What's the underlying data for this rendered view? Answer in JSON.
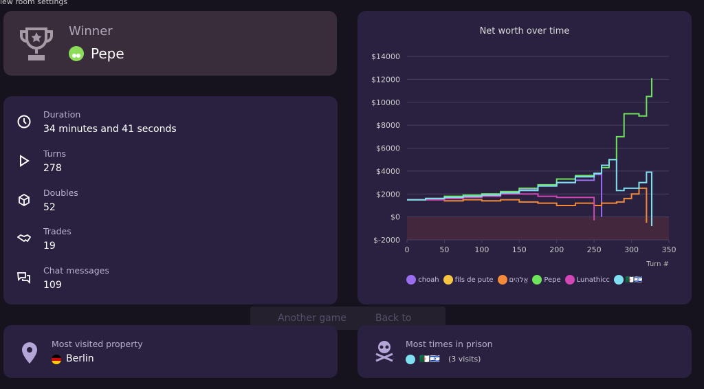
{
  "top_link": "iew room settings",
  "winner": {
    "heading": "Winner",
    "name": "Pepe"
  },
  "stats": [
    {
      "label": "Duration",
      "value": "34 minutes and 41 seconds"
    },
    {
      "label": "Turns",
      "value": "278"
    },
    {
      "label": "Doubles",
      "value": "52"
    },
    {
      "label": "Trades",
      "value": "19"
    },
    {
      "label": "Chat messages",
      "value": "109"
    }
  ],
  "buttons": [
    "Another game",
    "Back to lobby"
  ],
  "most_visited": {
    "label": "Most visited property",
    "value": "Berlin"
  },
  "prison": {
    "label": "Most times in prison",
    "players": "🇩🇿🇮🇱",
    "note": "(3 visits)"
  },
  "chart_data": {
    "type": "line",
    "step": true,
    "title": "Net worth over time",
    "xlabel": "Turn #",
    "x": [
      0,
      25,
      50,
      75,
      100,
      125,
      150,
      175,
      200,
      225,
      250,
      260,
      270,
      280,
      290,
      300,
      310,
      320,
      327
    ],
    "xlim": [
      0,
      350
    ],
    "xticks": [
      0,
      50,
      100,
      150,
      200,
      250,
      300,
      350
    ],
    "ylim": [
      -2000,
      14000
    ],
    "yticks": [
      {
        "value": -2000,
        "label": "$-2000"
      },
      {
        "value": 0,
        "label": "$0"
      },
      {
        "value": 2000,
        "label": "$2000"
      },
      {
        "value": 4000,
        "label": "$4000"
      },
      {
        "value": 6000,
        "label": "$6000"
      },
      {
        "value": 8000,
        "label": "$8000"
      },
      {
        "value": 10000,
        "label": "$10000"
      },
      {
        "value": 12000,
        "label": "$12000"
      },
      {
        "value": 14000,
        "label": "$14000"
      }
    ],
    "grid": true,
    "series": [
      {
        "name": "choah",
        "color": "#9a6cf0",
        "values": [
          1500,
          1600,
          1700,
          1800,
          2000,
          2200,
          2400,
          2700,
          3000,
          3200,
          3700,
          0,
          null,
          null,
          null,
          null,
          null,
          null,
          null
        ]
      },
      {
        "name": "fils de pute",
        "color": "#f5c542",
        "values": [
          1500,
          1600,
          1800,
          null,
          null,
          null,
          null,
          null,
          null,
          null,
          null,
          null,
          null,
          null,
          null,
          null,
          null,
          null,
          null
        ]
      },
      {
        "name": "אֱלֹהִים",
        "color": "#f28a3a",
        "values": [
          1500,
          1500,
          1400,
          1500,
          1400,
          1500,
          1300,
          1200,
          1000,
          1200,
          1000,
          1200,
          1200,
          1300,
          1600,
          2000,
          2500,
          -500,
          null
        ]
      },
      {
        "name": "Pepe",
        "color": "#6ee45a",
        "values": [
          1500,
          1600,
          1800,
          1900,
          2000,
          2200,
          2500,
          2800,
          3300,
          3600,
          3800,
          4300,
          5000,
          7000,
          9000,
          9000,
          8800,
          10500,
          12100
        ]
      },
      {
        "name": "Lunathicc",
        "color": "#d147b5",
        "values": [
          1500,
          1500,
          1600,
          1700,
          1800,
          2000,
          2000,
          1800,
          1700,
          1700,
          -300,
          null,
          null,
          null,
          null,
          null,
          null,
          null,
          null
        ]
      },
      {
        "name": "🇩🇿🇮🇱",
        "color": "#7ee0f0",
        "values": [
          1500,
          1600,
          1700,
          1800,
          1900,
          2100,
          2300,
          2700,
          3000,
          3500,
          3800,
          4500,
          5000,
          2300,
          2500,
          2500,
          3000,
          3900,
          -800
        ]
      }
    ]
  }
}
